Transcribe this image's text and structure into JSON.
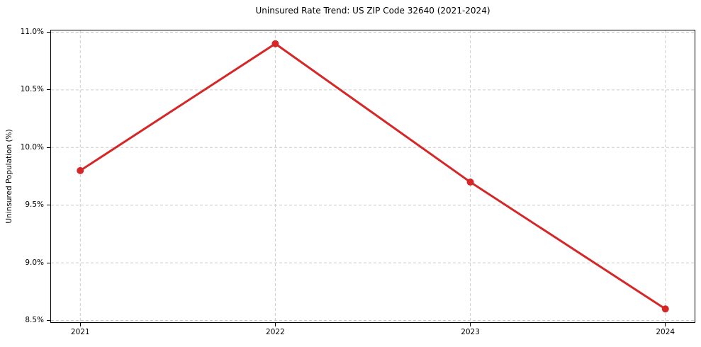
{
  "chart_data": {
    "type": "line",
    "title": "Uninsured Rate Trend: US ZIP Code 32640 (2021-2024)",
    "xlabel": "",
    "ylabel": "Uninsured Population (%)",
    "x": [
      2021,
      2022,
      2023,
      2024
    ],
    "series": [
      {
        "name": "Uninsured rate",
        "values": [
          9.8,
          10.9,
          9.7,
          8.6
        ],
        "color": "#d62728",
        "marker": "circle",
        "line_width": 3,
        "marker_radius": 5
      }
    ],
    "xticks": {
      "values": [
        2021,
        2022,
        2023,
        2024
      ],
      "labels": [
        "2021",
        "2022",
        "2023",
        "2024"
      ]
    },
    "yticks": {
      "values": [
        8.5,
        9.0,
        9.5,
        10.0,
        10.5,
        11.0
      ],
      "labels": [
        "8.5%",
        "9.0%",
        "9.5%",
        "10.0%",
        "10.5%",
        "11.0%"
      ]
    },
    "xlim": [
      2020.85,
      2024.15
    ],
    "ylim": [
      8.485,
      11.015
    ],
    "grid": true,
    "grid_style": "dashed",
    "grid_color": "#cccccc",
    "axis_color": "#000000",
    "text_color": "#000000",
    "background": "#ffffff",
    "legend": "none"
  }
}
